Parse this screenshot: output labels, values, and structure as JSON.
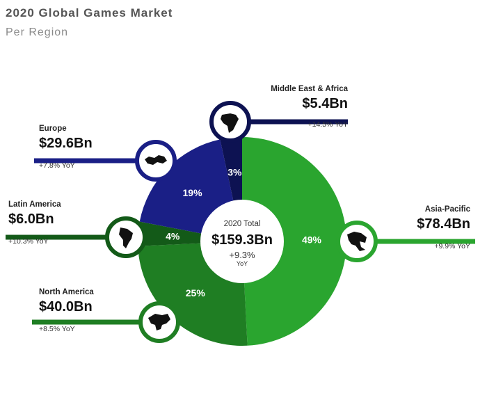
{
  "header": {
    "title": "2020 Global Games Market",
    "subtitle": "Per Region"
  },
  "center": {
    "label": "2020 Total",
    "value": "$159.3Bn",
    "yoy": "+9.3%",
    "yoy_suffix": "YoY"
  },
  "regions": [
    {
      "name": "Middle East & Africa",
      "value": "$5.4Bn",
      "yoy": "+14.5% YoY",
      "pct_label": "3%"
    },
    {
      "name": "Europe",
      "value": "$29.6Bn",
      "yoy": "+7.8% YoY",
      "pct_label": "19%"
    },
    {
      "name": "Latin America",
      "value": "$6.0Bn",
      "yoy": "+10.3% YoY",
      "pct_label": "4%"
    },
    {
      "name": "North America",
      "value": "$40.0Bn",
      "yoy": "+8.5% YoY",
      "pct_label": "25%"
    },
    {
      "name": "Asia-Pacific",
      "value": "$78.4Bn",
      "yoy": "+9.9% YoY",
      "pct_label": "49%"
    }
  ],
  "chart_data": {
    "type": "pie",
    "title": "2020 Global Games Market",
    "subtitle": "Per Region",
    "total": 159.3,
    "unit": "Bn USD",
    "categories": [
      "Asia-Pacific",
      "North America",
      "Latin America",
      "Europe",
      "Middle East & Africa"
    ],
    "values": [
      78.4,
      40.0,
      6.0,
      29.6,
      5.4
    ],
    "percent": [
      49,
      25,
      4,
      19,
      3
    ],
    "yoy_growth": [
      "+9.9%",
      "+8.5%",
      "+10.3%",
      "+7.8%",
      "+14.5%"
    ],
    "colors": [
      "#2aa52f",
      "#1f7e23",
      "#135a18",
      "#1a1f86",
      "#0d1252"
    ],
    "icons": [
      "asia-map-icon",
      "north-america-map-icon",
      "south-america-map-icon",
      "europe-map-icon",
      "africa-map-icon"
    ]
  }
}
